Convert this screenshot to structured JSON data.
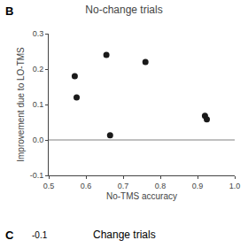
{
  "chart_data": {
    "type": "scatter",
    "title": "No-change trials",
    "xlabel": "No-TMS accuracy",
    "ylabel": "Improvement due to LO-TMS",
    "x": [
      0.57,
      0.575,
      0.655,
      0.665,
      0.76,
      0.92,
      0.925
    ],
    "values": [
      0.18,
      0.12,
      0.24,
      0.013,
      0.22,
      0.068,
      0.058
    ],
    "color": "#1a1a1a",
    "marker": "circle",
    "xlim": [
      0.5,
      1.0
    ],
    "ylim": [
      -0.1,
      0.3
    ],
    "xticks": [
      0.5,
      0.6,
      0.7,
      0.8,
      0.9,
      {
        "value": 1.0,
        "label": "1.0"
      }
    ],
    "yticks": [
      -0.1,
      {
        "value": 0.0,
        "label": "0.0"
      },
      0.1,
      0.2,
      0.3
    ],
    "reference_lines": [
      {
        "y": 0.0,
        "color": "#808080"
      }
    ],
    "grid": false,
    "annotations": [
      {
        "text": "B"
      },
      {
        "text": "C"
      },
      {
        "text": "Change trials"
      },
      {
        "text": "-0.1"
      }
    ]
  }
}
